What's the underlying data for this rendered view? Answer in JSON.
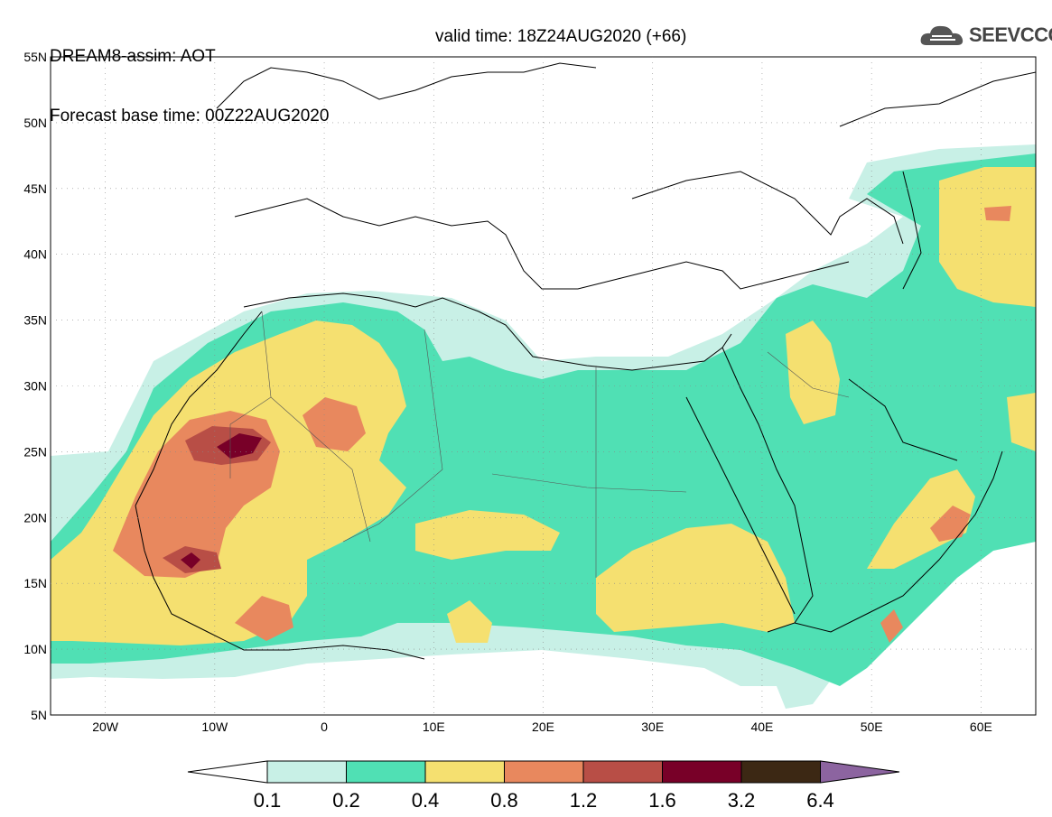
{
  "header": {
    "line1": "DREAM8-assim: AOT",
    "line2_base": "Forecast base time: 00Z22AUG2020",
    "line2_valid": "valid time: 18Z24AUG2020 (+66)"
  },
  "logo": {
    "name": "cloud-logo-icon",
    "text": "SEEVCCC",
    "color": "#555555"
  },
  "map": {
    "lon_range": [
      -25,
      65
    ],
    "lat_range": [
      5,
      55
    ],
    "lat_labels": [
      "55N",
      "50N",
      "45N",
      "40N",
      "35N",
      "30N",
      "25N",
      "20N",
      "15N",
      "10N",
      "5N"
    ],
    "lon_labels": [
      "20W",
      "10W",
      "0",
      "10E",
      "20E",
      "30E",
      "40E",
      "50E",
      "60E"
    ]
  },
  "colorbar": {
    "labels": [
      "0.1",
      "0.2",
      "0.4",
      "0.8",
      "1.2",
      "1.6",
      "3.2",
      "6.4"
    ],
    "colors": [
      "#c8f0e6",
      "#50e0b4",
      "#f5e070",
      "#e8885e",
      "#b84e46",
      "#780028",
      "#3c2814",
      "#8c64a0"
    ]
  }
}
